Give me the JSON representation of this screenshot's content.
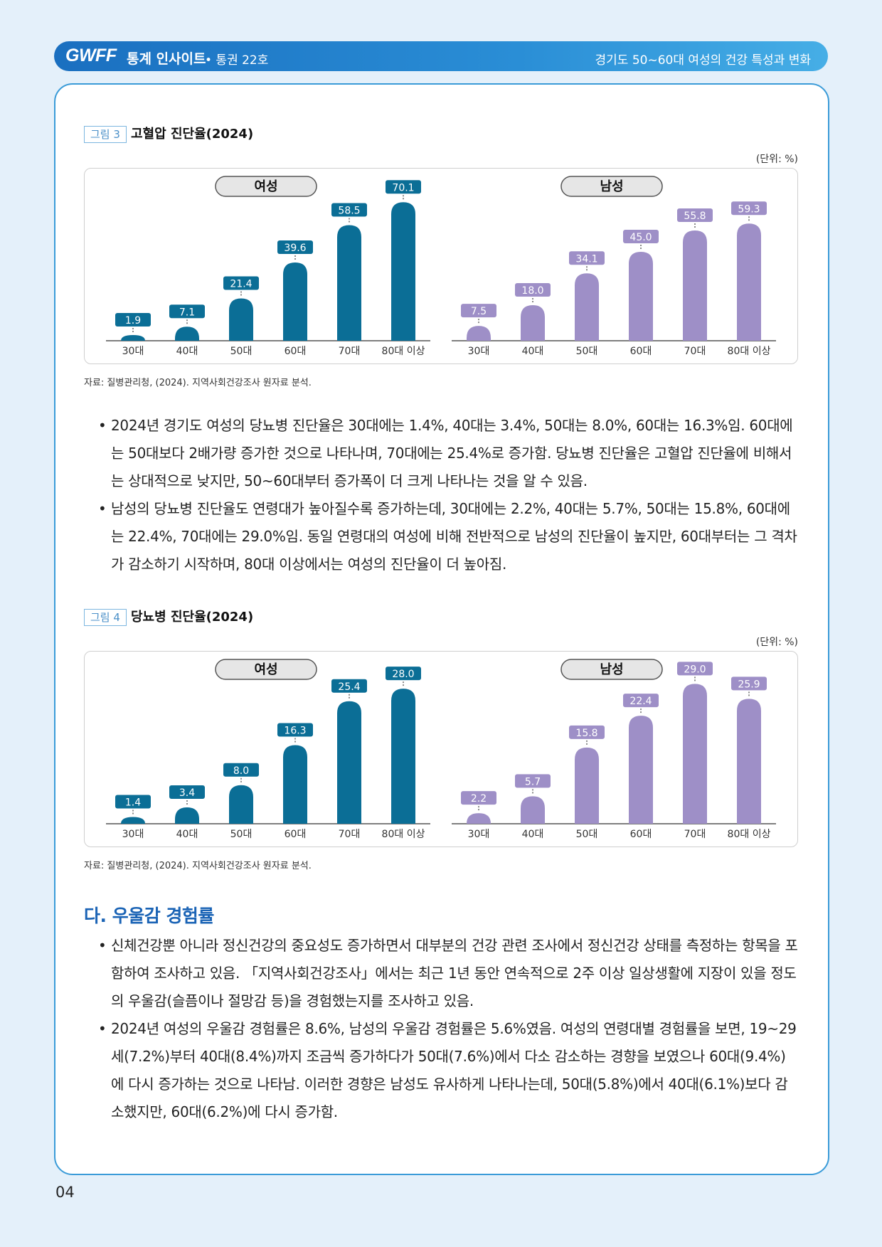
{
  "header": {
    "logo": "GWFF",
    "series": "통계 인사이트",
    "issue": "• 통권 22호",
    "topic": "경기도 50~60대 여성의 건강 특성과 변화"
  },
  "figures": [
    {
      "tag": "그림 3",
      "title": "고혈압 진단율(2024)",
      "unit": "(단위: %)",
      "source": "자료: 질병관리청, (2024). 지역사회건강조사 원자료 분석.",
      "chart_data": [
        {
          "type": "bar",
          "title": "여성",
          "categories": [
            "30대",
            "40대",
            "50대",
            "60대",
            "70대",
            "80대 이상"
          ],
          "values": [
            1.9,
            7.1,
            21.4,
            39.6,
            58.5,
            70.1
          ],
          "ylim": [
            0,
            72
          ],
          "color": "#0b6e96"
        },
        {
          "type": "bar",
          "title": "남성",
          "categories": [
            "30대",
            "40대",
            "50대",
            "60대",
            "70대",
            "80대 이상"
          ],
          "values": [
            7.5,
            18.0,
            34.1,
            45.0,
            55.8,
            59.3
          ],
          "ylim": [
            0,
            72
          ],
          "color": "#9e8fc7"
        }
      ]
    },
    {
      "tag": "그림 4",
      "title": "당뇨병 진단율(2024)",
      "unit": "(단위: %)",
      "source": "자료: 질병관리청, (2024). 지역사회건강조사 원자료 분석.",
      "chart_data": [
        {
          "type": "bar",
          "title": "여성",
          "categories": [
            "30대",
            "40대",
            "50대",
            "60대",
            "70대",
            "80대 이상"
          ],
          "values": [
            1.4,
            3.4,
            8.0,
            16.3,
            25.4,
            28.0
          ],
          "ylim": [
            0,
            29.5
          ],
          "color": "#0b6e96"
        },
        {
          "type": "bar",
          "title": "남성",
          "categories": [
            "30대",
            "40대",
            "50대",
            "60대",
            "70대",
            "80대 이상"
          ],
          "values": [
            2.2,
            5.7,
            15.8,
            22.4,
            29.0,
            25.9
          ],
          "ylim": [
            0,
            29.5
          ],
          "color": "#9e8fc7"
        }
      ]
    }
  ],
  "paragraphs1": [
    "2024년 경기도 여성의 당뇨병 진단율은 30대에는 1.4%, 40대는 3.4%, 50대는 8.0%, 60대는 16.3%임. 60대에는 50대보다 2배가량 증가한 것으로 나타나며, 70대에는 25.4%로 증가함. 당뇨병 진단율은 고혈압 진단율에 비해서는 상대적으로 낮지만, 50~60대부터 증가폭이 더 크게 나타나는 것을 알 수 있음.",
    "남성의 당뇨병 진단율도 연령대가 높아질수록 증가하는데, 30대에는 2.2%, 40대는 5.7%, 50대는 15.8%, 60대에는 22.4%, 70대에는 29.0%임. 동일 연령대의 여성에 비해 전반적으로 남성의 진단율이 높지만, 60대부터는 그 격차가 감소하기 시작하며, 80대 이상에서는 여성의 진단율이 더 높아짐."
  ],
  "section": {
    "title": "다. 우울감 경험률",
    "paragraphs": [
      "신체건강뿐 아니라 정신건강의 중요성도 증가하면서 대부분의 건강 관련 조사에서 정신건강 상태를 측정하는 항목을 포함하여 조사하고 있음. 「지역사회건강조사」에서는 최근 1년 동안 연속적으로 2주 이상 일상생활에 지장이 있을 정도의 우울감(슬픔이나 절망감 등)을 경험했는지를 조사하고 있음.",
      "2024년 여성의 우울감 경험률은 8.6%, 남성의 우울감 경험률은 5.6%였음. 여성의 연령대별 경험률을 보면, 19~29세(7.2%)부터 40대(8.4%)까지 조금씩 증가하다가 50대(7.6%)에서 다소 감소하는 경향을 보였으나 60대(9.4%)에 다시 증가하는 것으로 나타남. 이러한 경향은 남성도 유사하게 나타나는데, 50대(5.8%)에서 40대(6.1%)보다 감소했지만, 60대(6.2%)에 다시 증가함."
    ]
  },
  "page_number": "04"
}
